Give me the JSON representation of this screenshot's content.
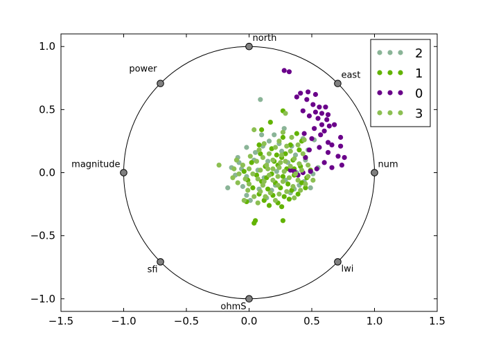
{
  "chart_data": {
    "type": "scatter",
    "title": "",
    "xlabel": "",
    "ylabel": "",
    "xlim": [
      -1.5,
      1.5
    ],
    "ylim": [
      -1.1,
      1.1
    ],
    "x_ticks": [
      -1.5,
      -1.0,
      -0.5,
      0.0,
      0.5,
      1.0,
      1.5
    ],
    "x_tick_labels": [
      "−1.5",
      "−1.0",
      "−0.5",
      "0.0",
      "0.5",
      "1.0",
      "1.5"
    ],
    "y_ticks": [
      1.0,
      0.5,
      0.0,
      -0.5,
      -1.0
    ],
    "y_tick_labels": [
      "1.0",
      "0.5",
      "0.0",
      "−0.5",
      "−1.0"
    ],
    "grid": false,
    "legend_position": "top-right",
    "unit_circle": true,
    "anchors": [
      {
        "name": "north",
        "x": 0.0,
        "y": 1.0
      },
      {
        "name": "east",
        "x": 0.707,
        "y": 0.707
      },
      {
        "name": "num",
        "x": 1.0,
        "y": 0.0
      },
      {
        "name": "lwi",
        "x": 0.707,
        "y": -0.707
      },
      {
        "name": "ohmS",
        "x": 0.0,
        "y": -1.0
      },
      {
        "name": "sfi",
        "x": -0.707,
        "y": -0.707
      },
      {
        "name": "magnitude",
        "x": -1.0,
        "y": 0.0
      },
      {
        "name": "power",
        "x": -0.707,
        "y": 0.707
      }
    ],
    "series": [
      {
        "name": "2",
        "color": "#8ab497",
        "points": [
          [
            0.09,
            0.58
          ],
          [
            0.28,
            0.35
          ],
          [
            0.43,
            0.27
          ],
          [
            0.52,
            0.26
          ],
          [
            0.16,
            0.25
          ],
          [
            0.11,
            0.21
          ],
          [
            -0.02,
            0.2
          ],
          [
            0.26,
            0.17
          ],
          [
            0.37,
            0.14
          ],
          [
            -0.09,
            0.12
          ],
          [
            -0.08,
            0.08
          ],
          [
            0.04,
            0.1
          ],
          [
            0.15,
            0.09
          ],
          [
            0.31,
            0.08
          ],
          [
            0.45,
            0.1
          ],
          [
            0.55,
            0.04
          ],
          [
            -0.14,
            0.04
          ],
          [
            -0.06,
            0.03
          ],
          [
            0.07,
            0.02
          ],
          [
            0.22,
            0.01
          ],
          [
            0.38,
            0.0
          ],
          [
            0.51,
            -0.01
          ],
          [
            -0.11,
            -0.02
          ],
          [
            -0.02,
            -0.03
          ],
          [
            0.12,
            -0.04
          ],
          [
            0.29,
            -0.06
          ],
          [
            0.44,
            -0.07
          ],
          [
            -0.17,
            -0.12
          ],
          [
            -0.05,
            -0.11
          ],
          [
            0.08,
            -0.13
          ],
          [
            0.21,
            -0.1
          ],
          [
            0.36,
            -0.13
          ],
          [
            0.49,
            -0.12
          ],
          [
            -0.02,
            -0.18
          ],
          [
            0.14,
            -0.2
          ],
          [
            0.33,
            -0.16
          ],
          [
            0.01,
            -0.22
          ],
          [
            0.18,
            -0.14
          ],
          [
            0.4,
            -0.1
          ],
          [
            0.05,
            0.16
          ],
          [
            0.24,
            0.23
          ],
          [
            0.34,
            0.21
          ],
          [
            0.47,
            0.18
          ],
          [
            0.2,
            0.3
          ],
          [
            0.1,
            0.3
          ]
        ]
      },
      {
        "name": "1",
        "color": "#62b300",
        "points": [
          [
            0.27,
            0.49
          ],
          [
            0.17,
            0.4
          ],
          [
            0.1,
            0.34
          ],
          [
            0.27,
            0.28
          ],
          [
            0.38,
            0.31
          ],
          [
            0.42,
            0.25
          ],
          [
            0.33,
            0.22
          ],
          [
            0.18,
            0.19
          ],
          [
            0.09,
            0.15
          ],
          [
            0.26,
            0.12
          ],
          [
            0.35,
            0.1
          ],
          [
            0.45,
            0.12
          ],
          [
            0.02,
            0.08
          ],
          [
            0.13,
            0.05
          ],
          [
            0.23,
            0.06
          ],
          [
            0.3,
            0.03
          ],
          [
            0.41,
            0.05
          ],
          [
            0.49,
            0.02
          ],
          [
            -0.04,
            0.01
          ],
          [
            0.06,
            -0.02
          ],
          [
            0.18,
            -0.01
          ],
          [
            0.27,
            -0.03
          ],
          [
            0.36,
            -0.02
          ],
          [
            0.46,
            -0.04
          ],
          [
            -0.01,
            -0.06
          ],
          [
            0.1,
            -0.07
          ],
          [
            0.21,
            -0.08
          ],
          [
            0.31,
            -0.09
          ],
          [
            0.42,
            -0.08
          ],
          [
            0.03,
            -0.12
          ],
          [
            0.15,
            -0.13
          ],
          [
            0.25,
            -0.12
          ],
          [
            0.34,
            -0.14
          ],
          [
            0.45,
            -0.12
          ],
          [
            0.08,
            -0.17
          ],
          [
            0.19,
            -0.18
          ],
          [
            0.28,
            -0.19
          ],
          [
            0.39,
            -0.17
          ],
          [
            0.12,
            -0.22
          ],
          [
            0.23,
            -0.24
          ],
          [
            0.32,
            -0.21
          ],
          [
            0.16,
            -0.26
          ],
          [
            0.26,
            -0.27
          ],
          [
            -0.02,
            -0.23
          ],
          [
            0.05,
            -0.38
          ],
          [
            0.04,
            -0.4
          ],
          [
            0.27,
            -0.38
          ],
          [
            0.08,
            0.22
          ],
          [
            0.22,
            0.14
          ],
          [
            0.4,
            0.18
          ],
          [
            0.2,
            0.09
          ],
          [
            0.29,
            0.15
          ],
          [
            0.36,
            0.03
          ],
          [
            0.14,
            -0.04
          ]
        ]
      },
      {
        "name": "0",
        "color": "#6a008a",
        "points": [
          [
            0.28,
            0.81
          ],
          [
            0.32,
            0.8
          ],
          [
            0.41,
            0.63
          ],
          [
            0.47,
            0.64
          ],
          [
            0.53,
            0.62
          ],
          [
            0.38,
            0.6
          ],
          [
            0.46,
            0.58
          ],
          [
            0.51,
            0.54
          ],
          [
            0.56,
            0.52
          ],
          [
            0.61,
            0.52
          ],
          [
            0.43,
            0.49
          ],
          [
            0.53,
            0.48
          ],
          [
            0.58,
            0.47
          ],
          [
            0.63,
            0.46
          ],
          [
            0.48,
            0.45
          ],
          [
            0.55,
            0.43
          ],
          [
            0.62,
            0.42
          ],
          [
            0.58,
            0.38
          ],
          [
            0.64,
            0.37
          ],
          [
            0.68,
            0.38
          ],
          [
            0.52,
            0.35
          ],
          [
            0.6,
            0.33
          ],
          [
            0.44,
            0.31
          ],
          [
            0.57,
            0.3
          ],
          [
            0.73,
            0.28
          ],
          [
            0.5,
            0.27
          ],
          [
            0.63,
            0.24
          ],
          [
            0.66,
            0.22
          ],
          [
            0.73,
            0.21
          ],
          [
            0.56,
            0.2
          ],
          [
            0.48,
            0.18
          ],
          [
            0.63,
            0.16
          ],
          [
            0.71,
            0.13
          ],
          [
            0.76,
            0.12
          ],
          [
            0.45,
            0.12
          ],
          [
            0.6,
            0.08
          ],
          [
            0.74,
            0.06
          ],
          [
            0.66,
            0.04
          ],
          [
            0.54,
            0.03
          ],
          [
            0.43,
            0.0
          ],
          [
            0.36,
            0.01
          ],
          [
            0.39,
            -0.02
          ],
          [
            0.33,
            0.02
          ],
          [
            0.49,
            0.01
          ]
        ]
      },
      {
        "name": "3",
        "color": "#8cbf52",
        "points": [
          [
            0.29,
            0.47
          ],
          [
            0.04,
            0.34
          ],
          [
            0.27,
            0.32
          ],
          [
            0.34,
            0.28
          ],
          [
            0.24,
            0.25
          ],
          [
            0.44,
            0.26
          ],
          [
            0.12,
            0.23
          ],
          [
            0.3,
            0.21
          ],
          [
            0.39,
            0.22
          ],
          [
            0.21,
            0.2
          ],
          [
            0.08,
            0.18
          ],
          [
            0.33,
            0.17
          ],
          [
            0.16,
            0.15
          ],
          [
            0.43,
            0.15
          ],
          [
            0.26,
            0.14
          ],
          [
            0.01,
            0.13
          ],
          [
            0.11,
            0.12
          ],
          [
            0.36,
            0.11
          ],
          [
            0.19,
            0.1
          ],
          [
            -0.1,
            0.1
          ],
          [
            0.06,
            0.09
          ],
          [
            0.29,
            0.09
          ],
          [
            0.4,
            0.07
          ],
          [
            -0.05,
            0.06
          ],
          [
            0.14,
            0.06
          ],
          [
            0.24,
            0.04
          ],
          [
            0.33,
            0.05
          ],
          [
            0.47,
            0.06
          ],
          [
            -0.24,
            0.06
          ],
          [
            -0.12,
            0.03
          ],
          [
            0.0,
            0.03
          ],
          [
            0.09,
            0.02
          ],
          [
            0.19,
            0.03
          ],
          [
            0.28,
            0.01
          ],
          [
            0.42,
            0.02
          ],
          [
            -0.08,
            -0.01
          ],
          [
            0.03,
            -0.01
          ],
          [
            0.16,
            -0.02
          ],
          [
            0.23,
            -0.03
          ],
          [
            0.32,
            -0.04
          ],
          [
            0.47,
            -0.03
          ],
          [
            -0.13,
            -0.04
          ],
          [
            -0.03,
            -0.05
          ],
          [
            0.07,
            -0.05
          ],
          [
            0.19,
            -0.06
          ],
          [
            0.27,
            -0.07
          ],
          [
            0.39,
            -0.06
          ],
          [
            0.51,
            -0.06
          ],
          [
            -0.09,
            -0.08
          ],
          [
            0.0,
            -0.09
          ],
          [
            0.11,
            -0.1
          ],
          [
            0.23,
            -0.1
          ],
          [
            0.35,
            -0.11
          ],
          [
            -0.01,
            -0.14
          ],
          [
            0.09,
            -0.15
          ],
          [
            0.17,
            -0.16
          ],
          [
            0.3,
            -0.15
          ],
          [
            0.41,
            -0.14
          ],
          [
            0.04,
            -0.19
          ],
          [
            0.13,
            -0.19
          ],
          [
            0.24,
            -0.17
          ],
          [
            0.07,
            -0.24
          ],
          [
            0.21,
            -0.22
          ],
          [
            0.36,
            -0.2
          ],
          [
            -0.04,
            -0.22
          ],
          [
            0.15,
            0.03
          ],
          [
            0.25,
            0.08
          ],
          [
            0.37,
            -0.01
          ],
          [
            0.12,
            -0.07
          ],
          [
            0.45,
            -0.09
          ]
        ]
      }
    ]
  }
}
